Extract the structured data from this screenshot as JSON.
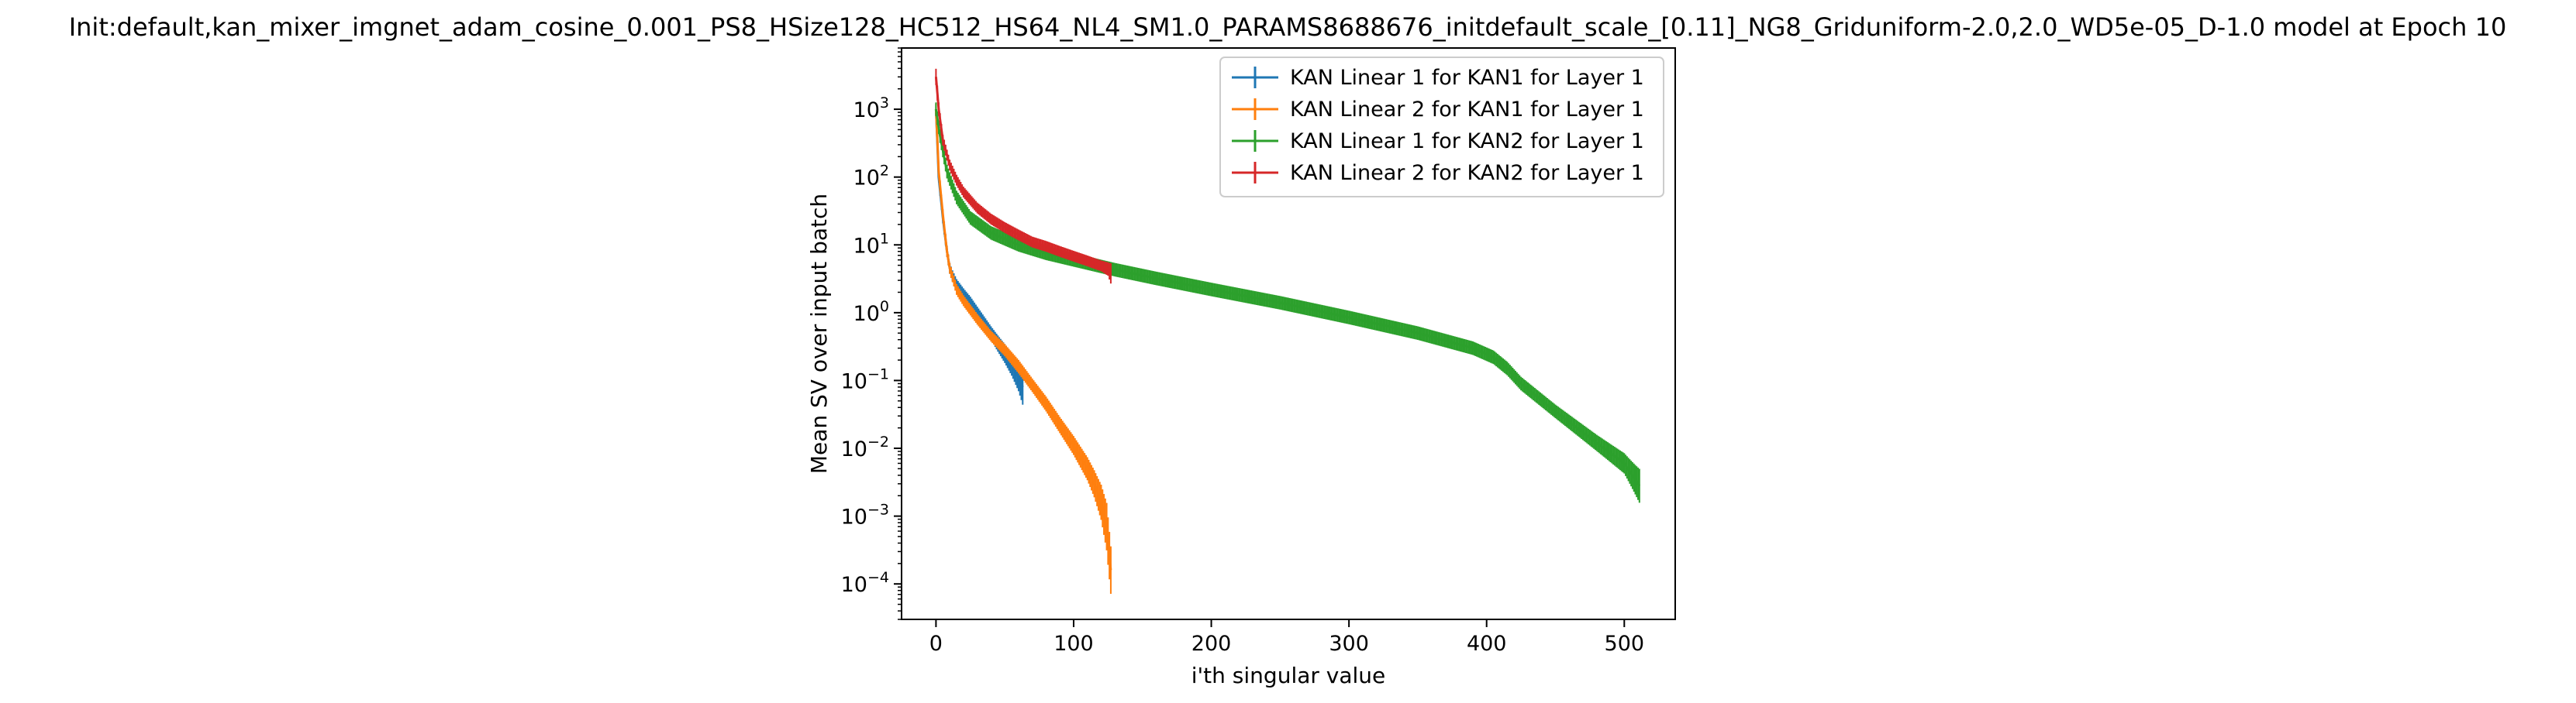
{
  "chart_data": {
    "type": "line",
    "title": "Init:default,kan_mixer_imgnet_adam_cosine_0.001_PS8_HSize128_HC512_HS64_NL4_SM1.0_PARAMS8688676_initdefault_scale_[0.11]_NG8_Griduniform-2.0,2.0_WD5e-05_D-1.0 model at Epoch 10",
    "xlabel": "i'th singular value",
    "ylabel": "Mean SV over input batch",
    "xlim": [
      -25,
      537
    ],
    "ylim": [
      3e-05,
      8000
    ],
    "yscale": "log",
    "grid": false,
    "legend_position": "top-right",
    "x_ticks": [
      0,
      100,
      200,
      300,
      400,
      500
    ],
    "x_tick_labels": [
      "0",
      "100",
      "200",
      "300",
      "400",
      "500"
    ],
    "y_ticks": [
      0.0001,
      0.001,
      0.01,
      0.1,
      1,
      10,
      100,
      1000
    ],
    "y_tick_labels": [
      {
        "base": "10",
        "exp": "−4"
      },
      {
        "base": "10",
        "exp": "−3"
      },
      {
        "base": "10",
        "exp": "−2"
      },
      {
        "base": "10",
        "exp": "−1"
      },
      {
        "base": "10",
        "exp": "0"
      },
      {
        "base": "10",
        "exp": "1"
      },
      {
        "base": "10",
        "exp": "2"
      },
      {
        "base": "10",
        "exp": "3"
      }
    ],
    "series": [
      {
        "name": "KAN Linear 1 for KAN1 for Layer 1",
        "color": "#1f77b4",
        "x": [
          0,
          2,
          5,
          8,
          10,
          12,
          15,
          20,
          25,
          30,
          35,
          40,
          45,
          50,
          55,
          60,
          63
        ],
        "y": [
          1000,
          100,
          25,
          8,
          4.5,
          3.5,
          2.6,
          1.9,
          1.4,
          1.0,
          0.7,
          0.5,
          0.35,
          0.25,
          0.17,
          0.11,
          0.08
        ],
        "err": [
          0.08,
          0.08,
          0.08,
          0.08,
          0.08,
          0.08,
          0.08,
          0.08,
          0.09,
          0.09,
          0.1,
          0.1,
          0.12,
          0.14,
          0.16,
          0.2,
          0.26
        ]
      },
      {
        "name": "KAN Linear 2 for KAN1 for Layer 1",
        "color": "#ff7f0e",
        "x": [
          0,
          2,
          5,
          8,
          10,
          15,
          20,
          30,
          40,
          50,
          60,
          70,
          80,
          90,
          100,
          110,
          115,
          120,
          124,
          127
        ],
        "y": [
          1000,
          120,
          28,
          8,
          4.5,
          2.2,
          1.5,
          0.8,
          0.45,
          0.28,
          0.16,
          0.085,
          0.045,
          0.022,
          0.011,
          0.005,
          0.003,
          0.0016,
          0.0007,
          0.00016
        ],
        "err": [
          0.08,
          0.08,
          0.08,
          0.08,
          0.08,
          0.08,
          0.08,
          0.08,
          0.08,
          0.09,
          0.1,
          0.1,
          0.11,
          0.12,
          0.14,
          0.17,
          0.2,
          0.26,
          0.35,
          0.35
        ]
      },
      {
        "name": "KAN Linear 1 for KAN2 for Layer 1",
        "color": "#2ca02c",
        "x": [
          0,
          3,
          8,
          15,
          25,
          40,
          60,
          80,
          100,
          130,
          160,
          200,
          250,
          300,
          350,
          390,
          405,
          415,
          425,
          450,
          480,
          500,
          511
        ],
        "y": [
          1000,
          400,
          120,
          50,
          25,
          15,
          10,
          7.5,
          6.0,
          4.3,
          3.2,
          2.2,
          1.4,
          0.85,
          0.5,
          0.3,
          0.22,
          0.15,
          0.09,
          0.035,
          0.012,
          0.006,
          0.0028
        ],
        "err": [
          0.1,
          0.1,
          0.1,
          0.1,
          0.1,
          0.1,
          0.1,
          0.1,
          0.1,
          0.1,
          0.1,
          0.1,
          0.1,
          0.1,
          0.1,
          0.1,
          0.1,
          0.1,
          0.1,
          0.1,
          0.12,
          0.15,
          0.25
        ]
      },
      {
        "name": "KAN Linear 2 for KAN2 for Layer 1",
        "color": "#d62728",
        "x": [
          0,
          2,
          5,
          10,
          15,
          20,
          30,
          40,
          50,
          60,
          70,
          80,
          90,
          100,
          110,
          120,
          125,
          127
        ],
        "y": [
          3000,
          1000,
          350,
          150,
          90,
          60,
          35,
          24,
          18,
          14,
          11,
          9.5,
          8,
          6.8,
          5.8,
          4.9,
          4.4,
          3.8
        ],
        "err": [
          0.12,
          0.1,
          0.08,
          0.08,
          0.08,
          0.08,
          0.08,
          0.08,
          0.08,
          0.08,
          0.08,
          0.08,
          0.08,
          0.08,
          0.08,
          0.08,
          0.1,
          0.15
        ]
      }
    ]
  }
}
